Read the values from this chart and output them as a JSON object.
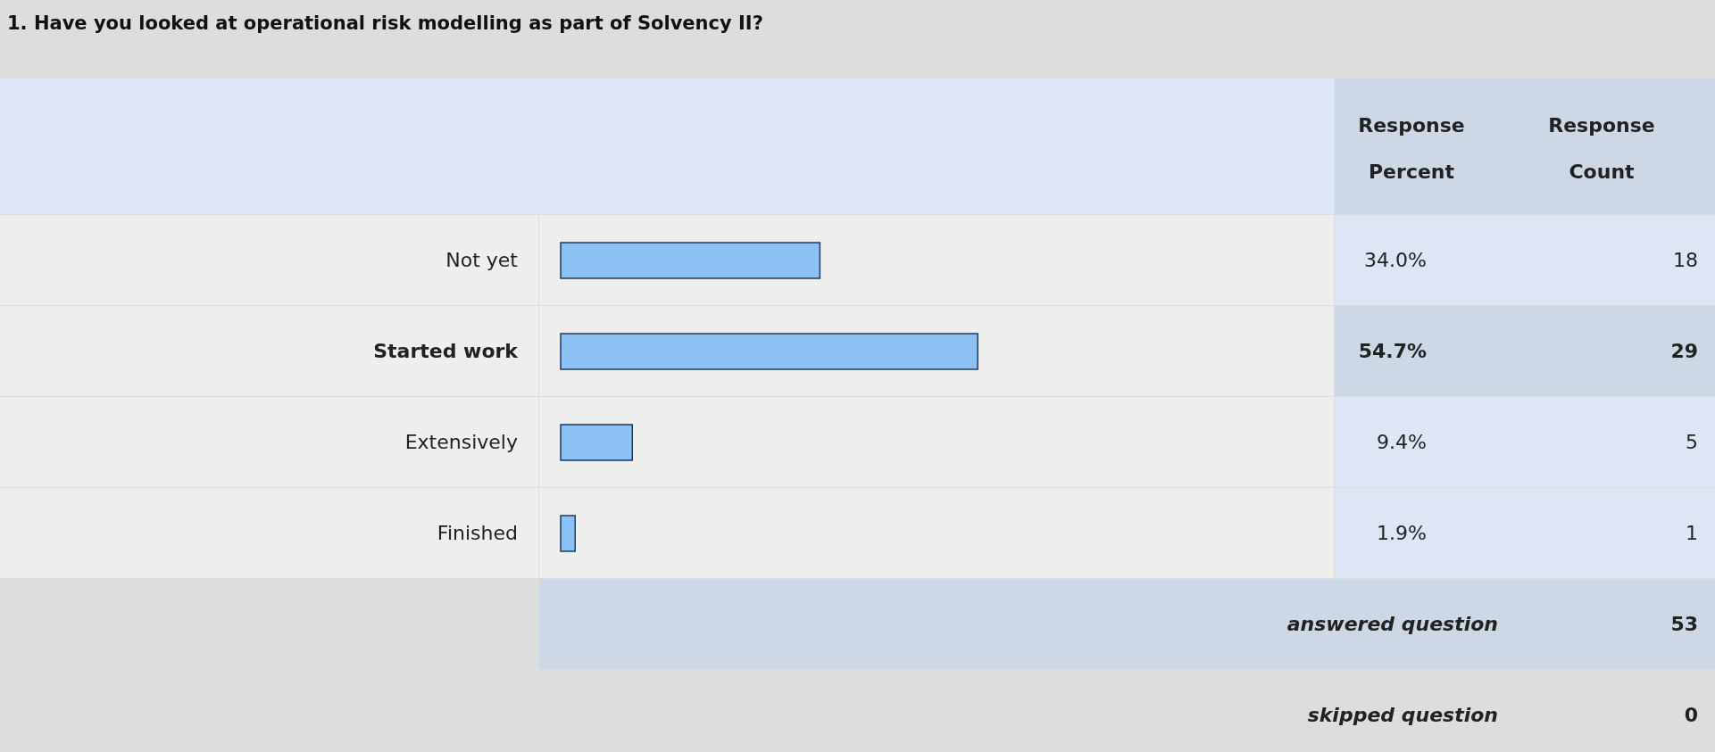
{
  "chart_data": {
    "type": "bar",
    "orientation": "horizontal",
    "title": "1. Have you looked at operational risk modelling as part of Solvency II?",
    "categories": [
      "Not yet",
      "Started work",
      "Extensively",
      "Finished"
    ],
    "values": [
      34.0,
      54.7,
      9.4,
      1.9
    ],
    "value_labels": [
      "34.0%",
      "54.7%",
      "9.4%",
      "1.9%"
    ],
    "color": "#8cc1f3",
    "annotations": [
      "Response Percent",
      "Response Count",
      "18",
      "29",
      "5",
      "1",
      "answered question",
      "53",
      "skipped question",
      "0"
    ]
  }
}
